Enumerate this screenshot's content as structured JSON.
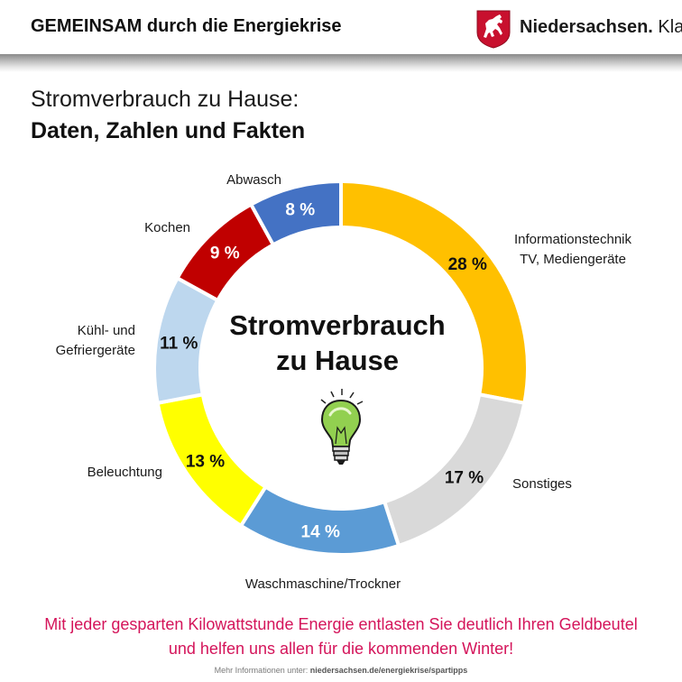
{
  "header": {
    "campaign_title": "GEMEINSAM durch die Energiekrise",
    "brand_name": "Niedersachsen.",
    "brand_claim": "Klar."
  },
  "page": {
    "title": "Stromverbrauch zu Hause:",
    "subtitle": "Daten, Zahlen und Fakten"
  },
  "chart_data": {
    "type": "pie",
    "style": "donut",
    "center_label_line1": "Stromverbrauch",
    "center_label_line2": "zu Hause",
    "center_icon": "light-bulb-icon",
    "unit": "%",
    "slices": [
      {
        "label_lines": [
          "Informationstechnik",
          "TV, Mediengeräte"
        ],
        "value": 28,
        "value_label": "28 %",
        "color": "#ffc000"
      },
      {
        "label_lines": [
          "Sonstiges"
        ],
        "value": 17,
        "value_label": "17 %",
        "color": "#d9d9d9"
      },
      {
        "label_lines": [
          "Waschmaschine/Trockner"
        ],
        "value": 14,
        "value_label": "14 %",
        "color": "#5b9bd5"
      },
      {
        "label_lines": [
          "Beleuchtung"
        ],
        "value": 13,
        "value_label": "13 %",
        "color": "#ffff00"
      },
      {
        "label_lines": [
          "Kühl- und",
          "Gefriergeräte"
        ],
        "value": 11,
        "value_label": "11 %",
        "color": "#bdd7ee"
      },
      {
        "label_lines": [
          "Kochen"
        ],
        "value": 9,
        "value_label": "9 %",
        "color": "#c00000"
      },
      {
        "label_lines": [
          "Abwasch"
        ],
        "value": 8,
        "value_label": "8 %",
        "color": "#4472c4"
      }
    ]
  },
  "footer": {
    "message": "Mit jeder gesparten Kilowattstunde Energie entlasten Sie deutlich Ihren Geldbeutel und helfen uns allen für die kommenden Winter!",
    "info_prefix": "Mehr Informationen unter: ",
    "info_url": "niedersachsen.de/energiekrise/spartipps"
  },
  "colors": {
    "footer_message": "#d4145a",
    "logo_red": "#c8102e"
  }
}
